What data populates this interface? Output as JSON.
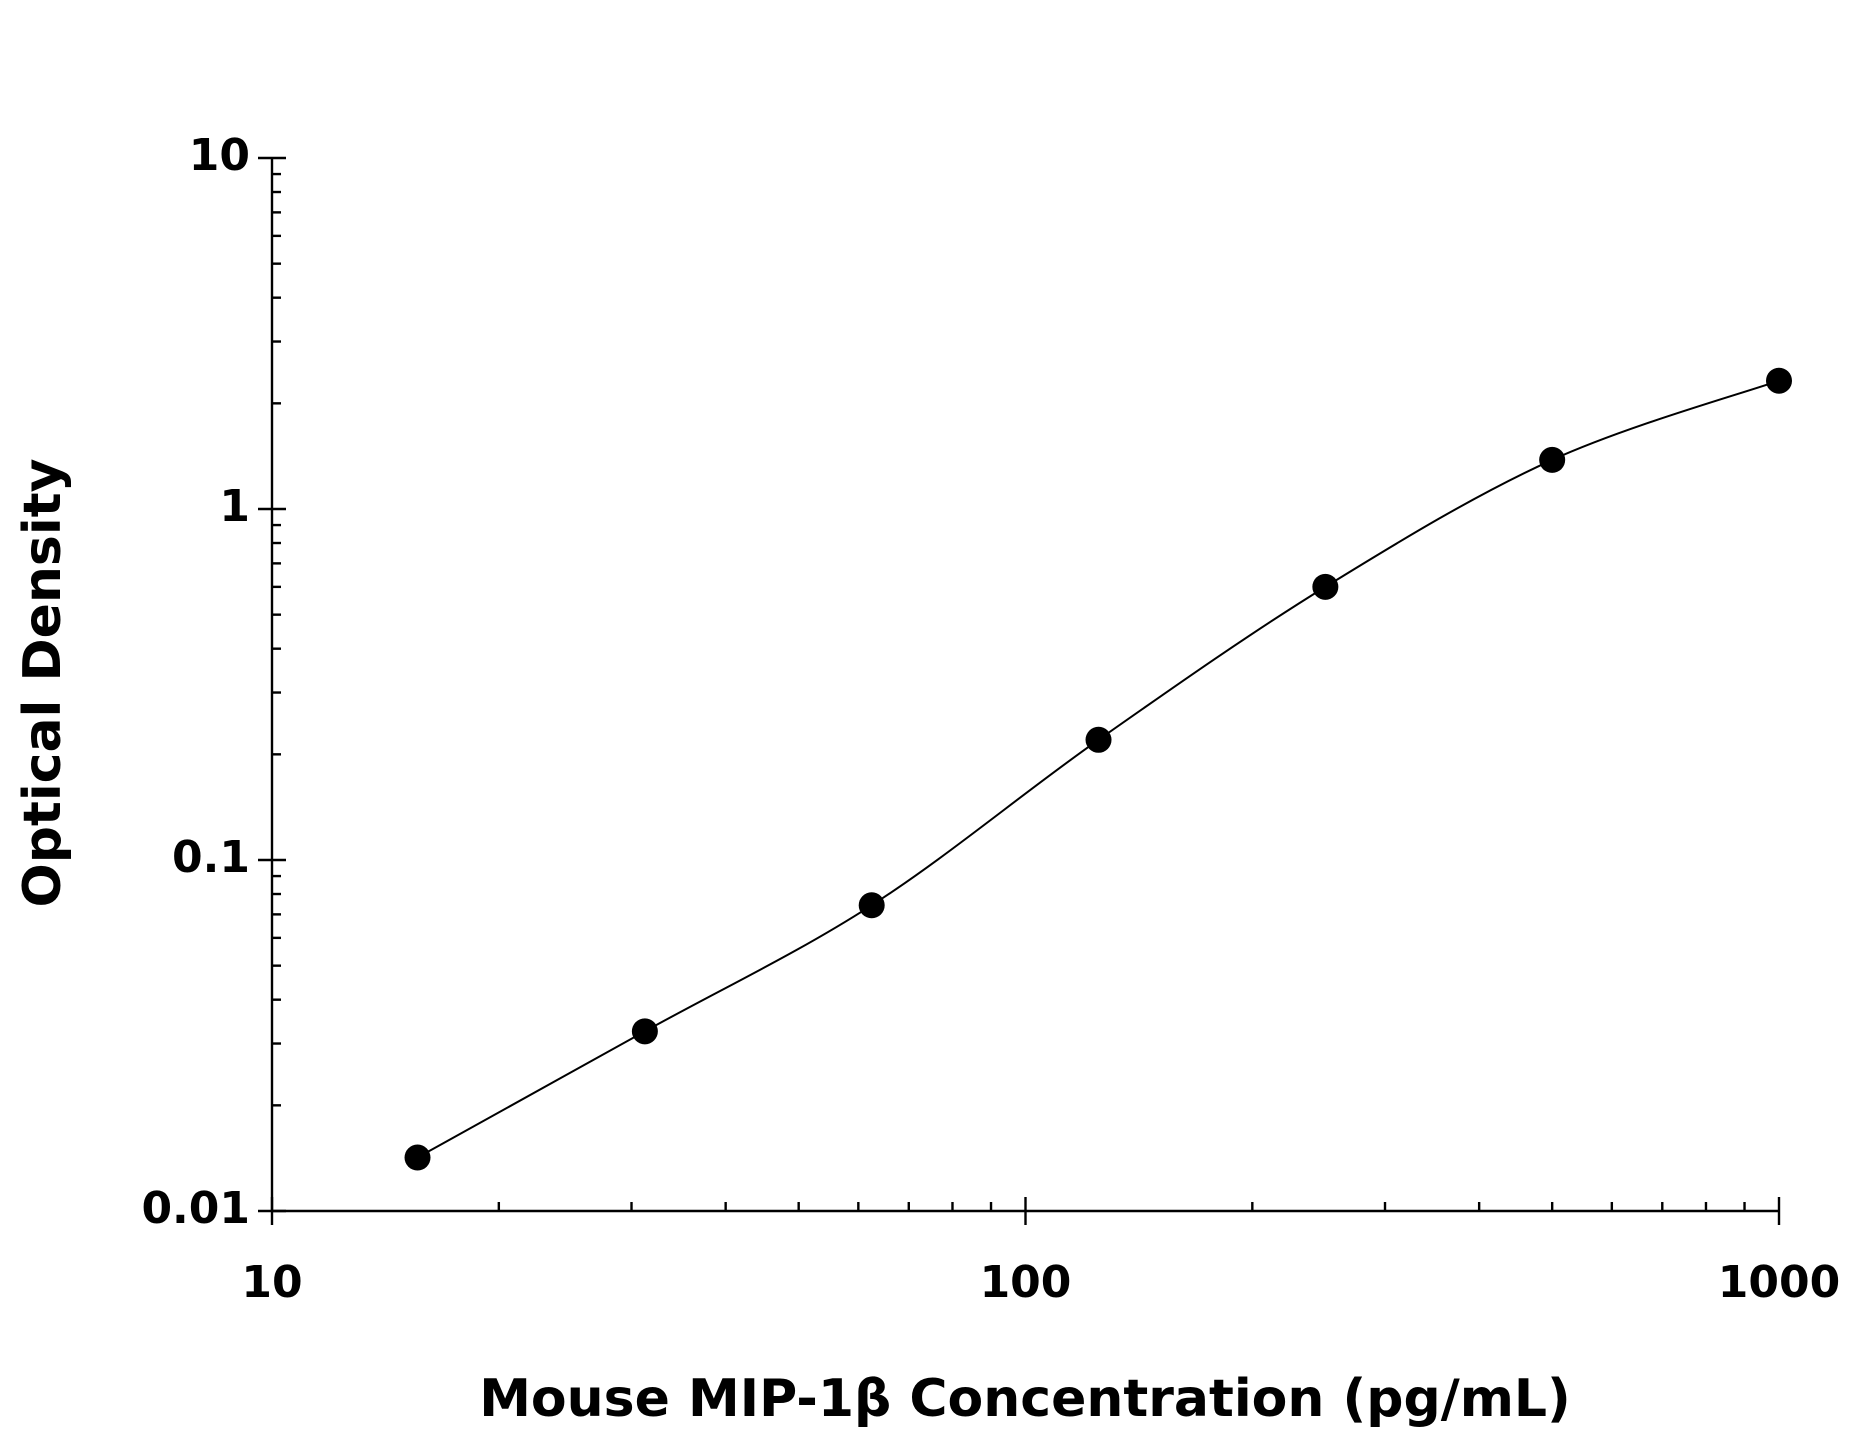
{
  "chart_data": {
    "type": "scatter",
    "x_label": "Mouse MIP-1β Concentration (pg/mL)",
    "y_label": "Optical Density",
    "x": [
      15.6,
      31.25,
      62.5,
      125,
      250,
      500,
      1000
    ],
    "series": [
      {
        "color": "#000000",
        "values": [
          0.0142,
          0.0325,
          0.0743,
          0.22,
          0.6,
          1.38,
          2.32
        ]
      }
    ],
    "xlim": [
      10,
      1000
    ],
    "ylim": [
      0.01,
      10
    ],
    "xticks": [
      10,
      100,
      1000
    ],
    "yticks": [
      0.01,
      0.1,
      1,
      10
    ],
    "xscale": "log",
    "yscale": "log",
    "fit_curve": true,
    "minor_ticks": true,
    "grid": false
  }
}
